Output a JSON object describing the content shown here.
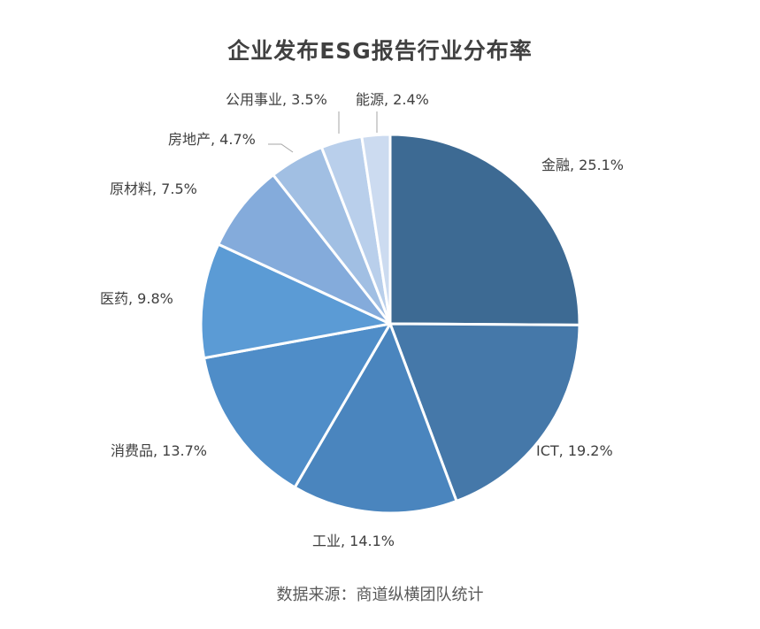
{
  "chart_data": {
    "type": "pie",
    "title": "企业发布ESG报告行业分布率",
    "slices": [
      {
        "label": "金融",
        "value": 25.1,
        "display": "金融, 25.1%",
        "color": "#3d6a93"
      },
      {
        "label": "ICT",
        "value": 19.2,
        "display": "ICT, 19.2%",
        "color": "#4578a9"
      },
      {
        "label": "工业",
        "value": 14.1,
        "display": "工业, 14.1%",
        "color": "#4a85be"
      },
      {
        "label": "消费品",
        "value": 13.7,
        "display": "消费品, 13.7%",
        "color": "#4f8dc8"
      },
      {
        "label": "医药",
        "value": 9.8,
        "display": "医药, 9.8%",
        "color": "#5b9bd5"
      },
      {
        "label": "原材料",
        "value": 7.5,
        "display": "原材料, 7.5%",
        "color": "#84abdb"
      },
      {
        "label": "房地产",
        "value": 4.7,
        "display": "房地产, 4.7%",
        "color": "#a1bfe3"
      },
      {
        "label": "公用事业",
        "value": 3.5,
        "display": "公用事业, 3.5%",
        "color": "#b9cfeb"
      },
      {
        "label": "能源",
        "value": 2.4,
        "display": "能源, 2.4%",
        "color": "#ccdbf0"
      }
    ],
    "unit": "%",
    "legend": "none",
    "data_labels": "outside"
  },
  "source_note": "数据来源：商道纵横团队统计"
}
